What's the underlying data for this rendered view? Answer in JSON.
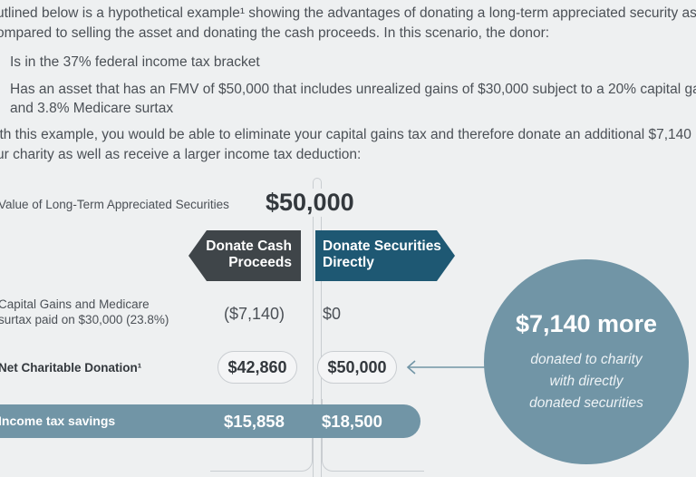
{
  "intro": {
    "line1": "utlined below is a hypothetical example¹ showing the advantages of donating a long-term appreciated security as",
    "line2": "ompared to selling the asset and donating the cash proceeds. In this scenario, the donor:"
  },
  "bullets": {
    "b1": "Is in the 37% federal income tax bracket",
    "b2_line1": "Has an asset that has an FMV of $50,000 that includes unrealized gains of $30,000 subject to a 20% capital ga",
    "b2_line2": "and 3.8% Medicare surtax"
  },
  "summary": {
    "line1": "ith this example, you would be able to eliminate your capital gains tax and therefore donate an additional $7,140",
    "line2": "ur charity as well as receive a larger income tax deduction:"
  },
  "asset": {
    "label": "Value of Long-Term Appreciated Securities",
    "value": "$50,000"
  },
  "columns": {
    "cash_line1": "Donate Cash",
    "cash_line2": "Proceeds",
    "sec_line1": "Donate Securities",
    "sec_line2": "Directly"
  },
  "rows": {
    "gains_label_line1": "Capital Gains and Medicare",
    "gains_label_line2": "surtax paid on $30,000 (23.8%)",
    "gains_cash": "($7,140)",
    "gains_sec": "$0",
    "net_label": "Net Charitable Donation¹",
    "net_cash": "$42,860",
    "net_sec": "$50,000",
    "savings_label": "Income tax savings",
    "savings_cash": "$15,858",
    "savings_sec": "$18,500"
  },
  "callout": {
    "headline": "$7,140 more",
    "line1": "donated to charity",
    "line2": "with directly",
    "line3": "donated securities",
    "icon": "arrow-left-icon"
  },
  "colors": {
    "dark_tag": "#3f4549",
    "blue_tag": "#1e5873",
    "accent": "#7195a6"
  }
}
